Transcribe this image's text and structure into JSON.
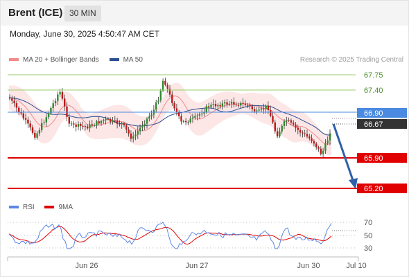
{
  "header": {
    "instrument": "Brent (ICE)",
    "interval": "30 MIN"
  },
  "datetime": "Monday, June 30, 2025 4:50:47 AM CET",
  "legend": {
    "bollinger_label": "MA 20 + Bollinger Bands",
    "ma50_label": "MA 50",
    "rsi_label": "RSI",
    "rsi_ma_label": "9MA"
  },
  "copyright": "Research © 2025 Trading Central",
  "levels": {
    "r2": "67.75",
    "r1": "67.40",
    "ma": "66.90",
    "last": "66.67",
    "s1": "65.90",
    "s2": "65.20"
  },
  "rsi_ticks": [
    "70",
    "50",
    "30"
  ],
  "x_ticks": [
    "Jun 26",
    "Jun 27",
    "Jun 30",
    "Jul 10"
  ],
  "colors": {
    "up": "#2e8b2e",
    "down": "#c01818",
    "bollinger": "#f28b8b",
    "ma50": "#2b4f8f",
    "resistance": "#9acd6a",
    "support": "#e00000",
    "ma_level": "#4a8ae0",
    "last": "#333333",
    "rsi": "#5b86e5",
    "rsi_ma": "#e00000",
    "arrow": "#2f5fa8"
  },
  "chart_data": {
    "type": "candlestick",
    "price_levels": [
      67.75,
      67.4,
      66.9,
      66.67,
      65.9,
      65.2
    ],
    "forecast": {
      "from": 66.67,
      "to": 65.2,
      "direction": "down"
    },
    "rsi_levels": [
      70,
      50,
      30
    ]
  }
}
